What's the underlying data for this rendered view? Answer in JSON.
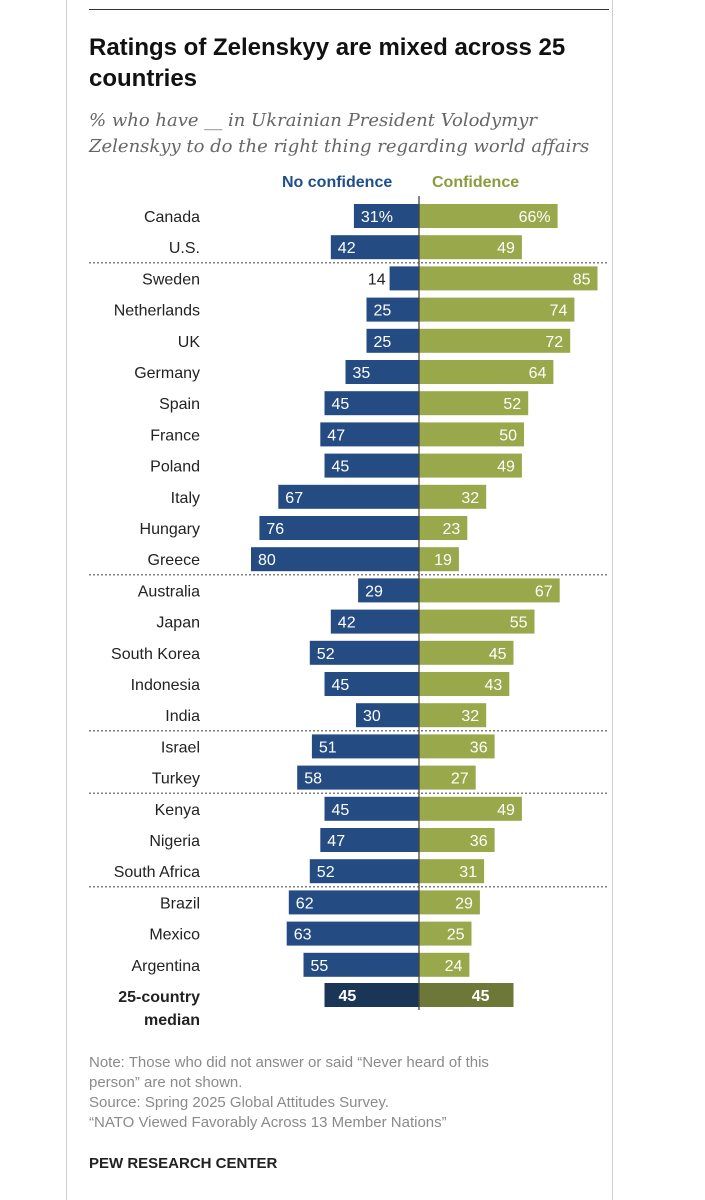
{
  "title": "Ratings of Zelenskyy are mixed across 25 countries",
  "subtitle": "% who have __ in Ukrainian President Volodymyr Zelenskyy to do the right thing regarding world affairs",
  "colors": {
    "no_confidence": "#244c83",
    "confidence": "#98a84a",
    "median_no": "#1a3556",
    "median_yes": "#6c7738"
  },
  "chart_data": {
    "type": "bar",
    "orientation": "horizontal-diverging",
    "title": "Ratings of Zelenskyy are mixed across 25 countries",
    "series": [
      {
        "name": "No confidence",
        "values": [
          31,
          42,
          14,
          25,
          25,
          35,
          45,
          47,
          45,
          67,
          76,
          80,
          29,
          42,
          52,
          45,
          30,
          51,
          58,
          45,
          47,
          52,
          62,
          63,
          55
        ]
      },
      {
        "name": "Confidence",
        "values": [
          66,
          49,
          85,
          74,
          72,
          64,
          52,
          50,
          49,
          32,
          23,
          19,
          67,
          55,
          45,
          43,
          32,
          36,
          27,
          49,
          36,
          31,
          29,
          25,
          24
        ]
      }
    ],
    "categories": [
      "Canada",
      "U.S.",
      "Sweden",
      "Netherlands",
      "UK",
      "Germany",
      "Spain",
      "France",
      "Poland",
      "Italy",
      "Hungary",
      "Greece",
      "Australia",
      "Japan",
      "South Korea",
      "Indonesia",
      "India",
      "Israel",
      "Turkey",
      "Kenya",
      "Nigeria",
      "South Africa",
      "Brazil",
      "Mexico",
      "Argentina"
    ],
    "first_labels": [
      "31%",
      "66%"
    ],
    "group_breaks_after": [
      1,
      11,
      16,
      18,
      21
    ],
    "median": {
      "label_line1": "25-country",
      "label_line2": "median",
      "no_confidence": 45,
      "confidence": 45
    },
    "legend": [
      "No confidence",
      "Confidence"
    ]
  },
  "notes": [
    "Note: Those who did not answer or said “Never heard of this",
    "person” are not shown.",
    "Source: Spring 2025 Global Attitudes Survey.",
    "“NATO Viewed Favorably Across 13 Member Nations”"
  ],
  "footer": "PEW RESEARCH CENTER"
}
